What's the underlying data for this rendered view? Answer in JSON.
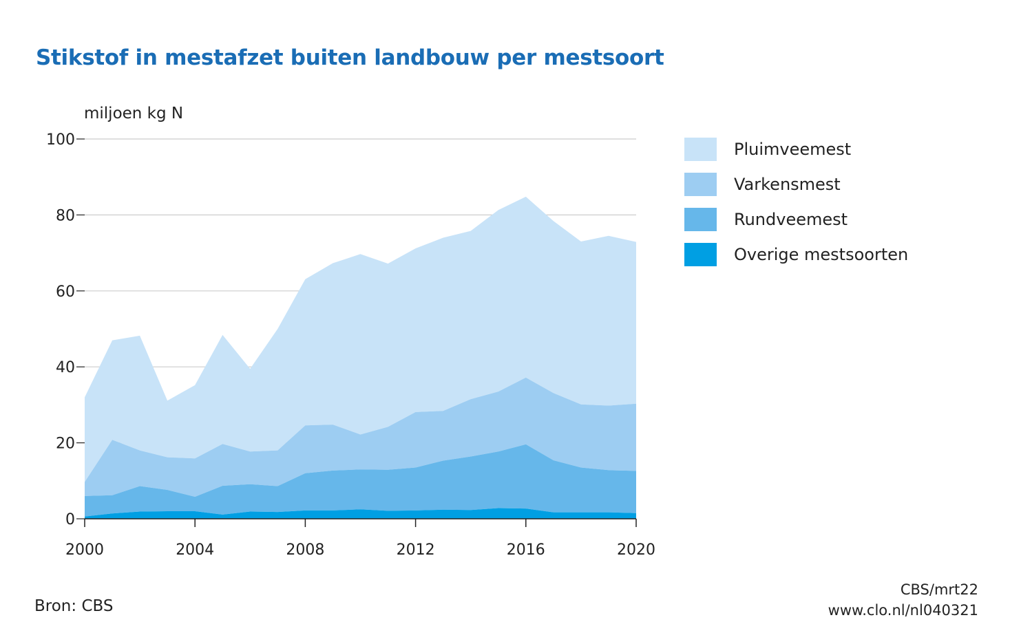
{
  "title": "Stikstof in mestafzet buiten landbouw per mestsoort",
  "footer": {
    "source": "Bron: CBS",
    "credit": "CBS/mrt22",
    "url": "www.clo.nl/nl040321"
  },
  "chart_data": {
    "type": "area",
    "stacked": true,
    "ylabel": "miljoen kg N",
    "xlabel": "",
    "ylim": [
      0,
      100
    ],
    "yticks": [
      0,
      20,
      40,
      60,
      80,
      100
    ],
    "xlim": [
      2000,
      2020
    ],
    "xticks": [
      2000,
      2004,
      2008,
      2012,
      2016,
      2020
    ],
    "grid": "horizontal",
    "legend_position": "right",
    "x": [
      2000,
      2001,
      2002,
      2003,
      2004,
      2005,
      2006,
      2007,
      2008,
      2009,
      2010,
      2011,
      2012,
      2013,
      2014,
      2015,
      2016,
      2017,
      2018,
      2019,
      2020
    ],
    "series": [
      {
        "name": "Overige mestsoorten",
        "color": "#009fe3",
        "values": [
          0.6,
          1.4,
          1.9,
          2.0,
          2.0,
          1.1,
          1.9,
          1.8,
          2.2,
          2.2,
          2.5,
          2.1,
          2.2,
          2.4,
          2.3,
          2.8,
          2.7,
          1.7,
          1.7,
          1.7,
          1.5
        ]
      },
      {
        "name": "Rundveemest",
        "color": "#66b7ea",
        "values": [
          5.4,
          4.8,
          6.7,
          5.6,
          3.8,
          7.6,
          7.2,
          6.8,
          9.8,
          10.5,
          10.5,
          10.8,
          11.3,
          12.9,
          14.1,
          14.9,
          16.9,
          13.7,
          11.8,
          11.1,
          11.1
        ]
      },
      {
        "name": "Varkensmest",
        "color": "#9dcdf2",
        "values": [
          3.7,
          14.6,
          9.4,
          8.6,
          10.1,
          11.0,
          8.6,
          9.4,
          12.6,
          12.1,
          9.2,
          11.3,
          14.6,
          13.1,
          15.1,
          15.8,
          17.6,
          17.7,
          16.6,
          17.0,
          17.7
        ]
      },
      {
        "name": "Pluimveemest",
        "color": "#c8e3f8",
        "values": [
          22.3,
          26.2,
          30.2,
          14.9,
          19.3,
          28.7,
          21.8,
          32.0,
          38.5,
          42.5,
          47.5,
          43.0,
          43.1,
          45.6,
          44.3,
          47.8,
          47.6,
          45.3,
          42.9,
          44.7,
          42.6
        ]
      }
    ],
    "legend_order": [
      "Pluimveemest",
      "Varkensmest",
      "Rundveemest",
      "Overige mestsoorten"
    ]
  }
}
